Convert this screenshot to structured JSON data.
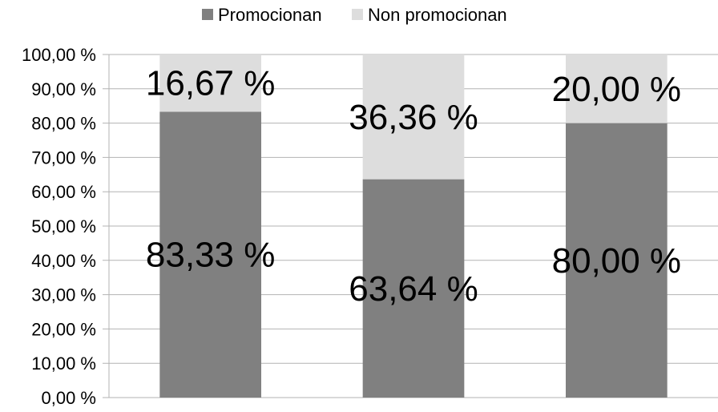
{
  "chart_data": {
    "type": "bar",
    "stacked": true,
    "percent": true,
    "categories": [
      "",
      "",
      ""
    ],
    "series": [
      {
        "name": "Promocionan",
        "color": "#808080",
        "values": [
          83.33,
          63.64,
          80.0
        ],
        "labels": [
          "83,33 %",
          "63,64 %",
          "80,00 %"
        ]
      },
      {
        "name": "Non promocionan",
        "color": "#dddddd",
        "values": [
          16.67,
          36.36,
          20.0
        ],
        "labels": [
          "16,67 %",
          "36,36 %",
          "20,00 %"
        ]
      }
    ],
    "ylim": [
      0,
      100
    ],
    "yticks": [
      "0,00 %",
      "10,00 %",
      "20,00 %",
      "30,00 %",
      "40,00 %",
      "50,00 %",
      "60,00 %",
      "70,00 %",
      "80,00 %",
      "90,00 %",
      "100,00 %"
    ],
    "grid": true,
    "legend": "top-center"
  }
}
